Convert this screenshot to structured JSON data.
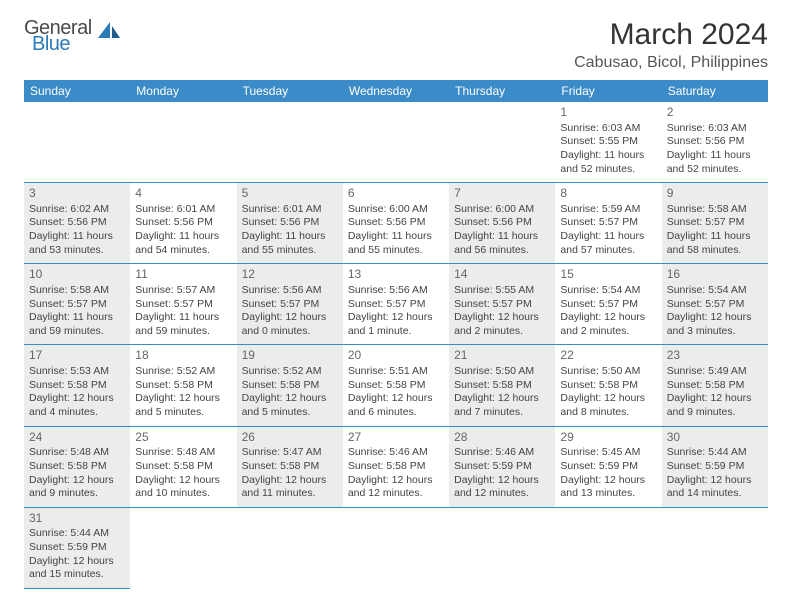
{
  "logo": {
    "general": "General",
    "blue": "Blue"
  },
  "title": "March 2024",
  "location": "Cabusao, Bicol, Philippines",
  "colors": {
    "header_bg": "#3b8bc8",
    "header_text": "#ffffff",
    "row_border": "#3b8bc8",
    "shade_bg": "#ececec",
    "logo_blue": "#2a7ab8",
    "logo_gray": "#4a4a4a",
    "text": "#444444"
  },
  "weekdays": [
    "Sunday",
    "Monday",
    "Tuesday",
    "Wednesday",
    "Thursday",
    "Friday",
    "Saturday"
  ],
  "first_weekday_index": 5,
  "days": [
    {
      "n": 1,
      "sr": "6:03 AM",
      "ss": "5:55 PM",
      "dl": "11 hours and 52 minutes."
    },
    {
      "n": 2,
      "sr": "6:03 AM",
      "ss": "5:56 PM",
      "dl": "11 hours and 52 minutes."
    },
    {
      "n": 3,
      "sr": "6:02 AM",
      "ss": "5:56 PM",
      "dl": "11 hours and 53 minutes."
    },
    {
      "n": 4,
      "sr": "6:01 AM",
      "ss": "5:56 PM",
      "dl": "11 hours and 54 minutes."
    },
    {
      "n": 5,
      "sr": "6:01 AM",
      "ss": "5:56 PM",
      "dl": "11 hours and 55 minutes."
    },
    {
      "n": 6,
      "sr": "6:00 AM",
      "ss": "5:56 PM",
      "dl": "11 hours and 55 minutes."
    },
    {
      "n": 7,
      "sr": "6:00 AM",
      "ss": "5:56 PM",
      "dl": "11 hours and 56 minutes."
    },
    {
      "n": 8,
      "sr": "5:59 AM",
      "ss": "5:57 PM",
      "dl": "11 hours and 57 minutes."
    },
    {
      "n": 9,
      "sr": "5:58 AM",
      "ss": "5:57 PM",
      "dl": "11 hours and 58 minutes."
    },
    {
      "n": 10,
      "sr": "5:58 AM",
      "ss": "5:57 PM",
      "dl": "11 hours and 59 minutes."
    },
    {
      "n": 11,
      "sr": "5:57 AM",
      "ss": "5:57 PM",
      "dl": "11 hours and 59 minutes."
    },
    {
      "n": 12,
      "sr": "5:56 AM",
      "ss": "5:57 PM",
      "dl": "12 hours and 0 minutes."
    },
    {
      "n": 13,
      "sr": "5:56 AM",
      "ss": "5:57 PM",
      "dl": "12 hours and 1 minute."
    },
    {
      "n": 14,
      "sr": "5:55 AM",
      "ss": "5:57 PM",
      "dl": "12 hours and 2 minutes."
    },
    {
      "n": 15,
      "sr": "5:54 AM",
      "ss": "5:57 PM",
      "dl": "12 hours and 2 minutes."
    },
    {
      "n": 16,
      "sr": "5:54 AM",
      "ss": "5:57 PM",
      "dl": "12 hours and 3 minutes."
    },
    {
      "n": 17,
      "sr": "5:53 AM",
      "ss": "5:58 PM",
      "dl": "12 hours and 4 minutes."
    },
    {
      "n": 18,
      "sr": "5:52 AM",
      "ss": "5:58 PM",
      "dl": "12 hours and 5 minutes."
    },
    {
      "n": 19,
      "sr": "5:52 AM",
      "ss": "5:58 PM",
      "dl": "12 hours and 5 minutes."
    },
    {
      "n": 20,
      "sr": "5:51 AM",
      "ss": "5:58 PM",
      "dl": "12 hours and 6 minutes."
    },
    {
      "n": 21,
      "sr": "5:50 AM",
      "ss": "5:58 PM",
      "dl": "12 hours and 7 minutes."
    },
    {
      "n": 22,
      "sr": "5:50 AM",
      "ss": "5:58 PM",
      "dl": "12 hours and 8 minutes."
    },
    {
      "n": 23,
      "sr": "5:49 AM",
      "ss": "5:58 PM",
      "dl": "12 hours and 9 minutes."
    },
    {
      "n": 24,
      "sr": "5:48 AM",
      "ss": "5:58 PM",
      "dl": "12 hours and 9 minutes."
    },
    {
      "n": 25,
      "sr": "5:48 AM",
      "ss": "5:58 PM",
      "dl": "12 hours and 10 minutes."
    },
    {
      "n": 26,
      "sr": "5:47 AM",
      "ss": "5:58 PM",
      "dl": "12 hours and 11 minutes."
    },
    {
      "n": 27,
      "sr": "5:46 AM",
      "ss": "5:58 PM",
      "dl": "12 hours and 12 minutes."
    },
    {
      "n": 28,
      "sr": "5:46 AM",
      "ss": "5:59 PM",
      "dl": "12 hours and 12 minutes."
    },
    {
      "n": 29,
      "sr": "5:45 AM",
      "ss": "5:59 PM",
      "dl": "12 hours and 13 minutes."
    },
    {
      "n": 30,
      "sr": "5:44 AM",
      "ss": "5:59 PM",
      "dl": "12 hours and 14 minutes."
    },
    {
      "n": 31,
      "sr": "5:44 AM",
      "ss": "5:59 PM",
      "dl": "12 hours and 15 minutes."
    }
  ],
  "labels": {
    "sunrise": "Sunrise:",
    "sunset": "Sunset:",
    "daylight": "Daylight:"
  }
}
